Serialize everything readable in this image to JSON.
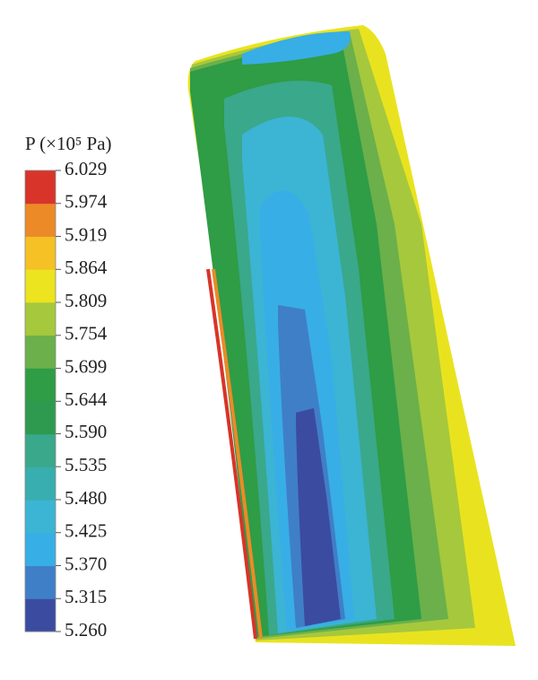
{
  "chart_data": {
    "type": "contour",
    "colorbar_label": "P (×10⁵ Pa)",
    "ylim": [
      5.26,
      6.029
    ],
    "yticks": [
      6.029,
      5.974,
      5.919,
      5.864,
      5.809,
      5.754,
      5.699,
      5.644,
      {
        "value": 5.59,
        "label": "5.590"
      },
      5.535,
      {
        "value": 5.48,
        "label": "5.480"
      },
      5.425,
      {
        "value": 5.37,
        "label": "5.370"
      },
      5.315,
      {
        "value": 5.26,
        "label": "5.260"
      }
    ],
    "colors": [
      "#3b4ba0",
      "#3f7fc8",
      "#38aee6",
      "#3cb4d4",
      "#38ae b0",
      "#3aa88a",
      "#2e9a50",
      "#2f9c46",
      "#6bb04a",
      "#a6c83c",
      "#ece41e",
      "#f5c125",
      "#ec8a28",
      "#d8342a"
    ]
  }
}
